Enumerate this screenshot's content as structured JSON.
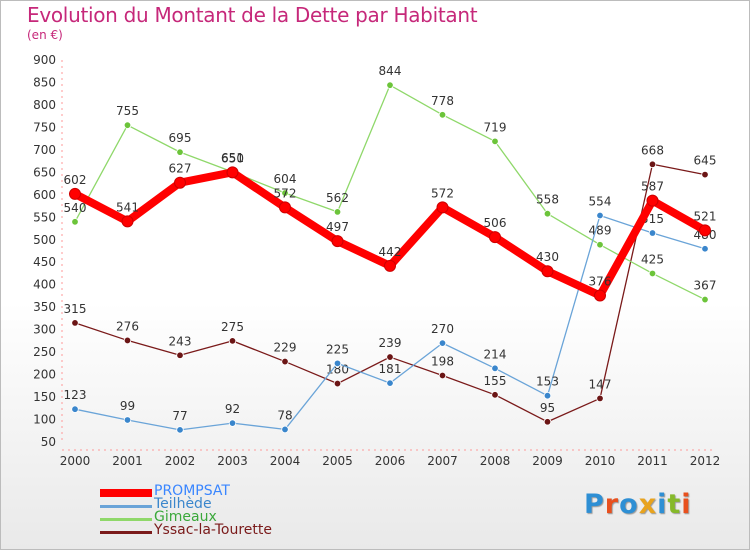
{
  "title": "Evolution du Montant de la Dette par Habitant",
  "subtitle": "(en €)",
  "logo": {
    "text": "Proxiti",
    "letter_colors": [
      "#2e8fd4",
      "#e8501e",
      "#2e8fd4",
      "#e8a31e",
      "#2e8fd4",
      "#86b92a",
      "#e8501e"
    ]
  },
  "chart_data": {
    "type": "line",
    "title": "Evolution du Montant de la Dette par Habitant",
    "ylabel": "(en €)",
    "xlabel": "",
    "ylim": [
      50,
      900
    ],
    "y_ticks": [
      50,
      100,
      150,
      200,
      250,
      300,
      350,
      400,
      450,
      500,
      550,
      600,
      650,
      700,
      750,
      800,
      850,
      900
    ],
    "grid": false,
    "legend_position": "bottom-left",
    "x": [
      "2000",
      "2001",
      "2002",
      "2003",
      "2004",
      "2005",
      "2006",
      "2007",
      "2008",
      "2009",
      "2010",
      "2011",
      "2012"
    ],
    "series": [
      {
        "name": "Yssac-la-Tourette",
        "color": "#7a1a1a",
        "dot": "#6b1515",
        "values": [
          315,
          276,
          243,
          275,
          229,
          180,
          239,
          198,
          155,
          95,
          147,
          668,
          645
        ]
      },
      {
        "name": "Gimeaux",
        "color": "#8fd86a",
        "dot": "#6cc43a",
        "values": [
          540,
          755,
          695,
          651,
          604,
          562,
          844,
          778,
          719,
          558,
          489,
          425,
          367
        ]
      },
      {
        "name": "Teilhède",
        "color": "#6aa4d8",
        "dot": "#3a86cc",
        "values": [
          123,
          99,
          77,
          92,
          78,
          225,
          181,
          270,
          214,
          153,
          554,
          515,
          480
        ]
      },
      {
        "name": "PROMPSAT",
        "color": "#ff0000",
        "dot": "#ff0000",
        "values": [
          602,
          541,
          627,
          650,
          572,
          497,
          442,
          572,
          506,
          430,
          376,
          587,
          521
        ]
      }
    ]
  }
}
